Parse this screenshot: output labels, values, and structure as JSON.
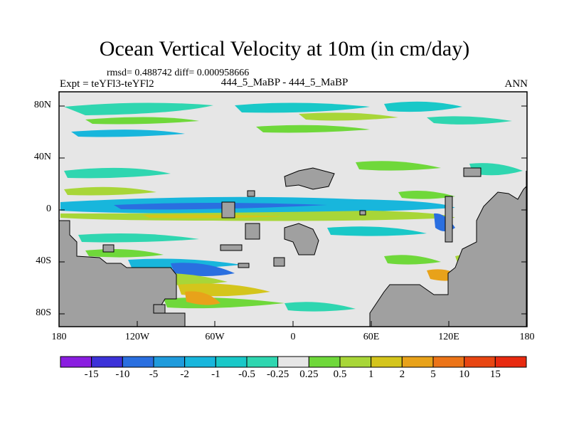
{
  "title": "Ocean Vertical Velocity at 10m (in cm/day)",
  "stats": "rmsd= 0.488742 diff= 0.000958666",
  "left_label": "Expt = teYFl3-teYFl2",
  "center_label": "444_5_MaBP - 444_5_MaBP",
  "right_label": "ANN",
  "y_ticks": [
    "80N",
    "40N",
    "0",
    "40S",
    "80S"
  ],
  "x_ticks": [
    "180",
    "120W",
    "60W",
    "0",
    "60E",
    "120E",
    "180"
  ],
  "colorbar": {
    "labels": [
      "-15",
      "-10",
      "-5",
      "-2",
      "-1",
      "-0.5",
      "-0.25",
      "0.25",
      "0.5",
      "1",
      "2",
      "5",
      "10",
      "15"
    ],
    "colors": [
      "#8a1ee0",
      "#3c32d9",
      "#2a6fe0",
      "#1f9bdc",
      "#18b6dc",
      "#19c8c8",
      "#2fd6b0",
      "#e6e6e6",
      "#6fd83a",
      "#a8d638",
      "#d4c51c",
      "#e8a21a",
      "#ec7418",
      "#e84612",
      "#e82a10"
    ]
  },
  "colors": {
    "land": "#a0a0a0",
    "ocean": "#e6e6e6"
  }
}
